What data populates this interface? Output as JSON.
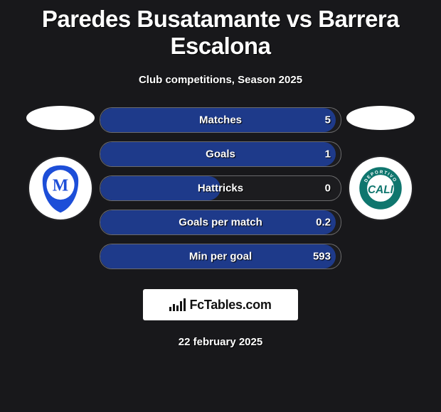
{
  "title": "Paredes Busatamante vs Barrera Escalona",
  "subtitle": "Club competitions, Season 2025",
  "date": "22 february 2025",
  "branding": "FcTables.com",
  "colors": {
    "bg": "#18181b",
    "bar_fill": "#1e3a8a",
    "bar_border": "rgba(255,255,255,0.35)",
    "text": "#ffffff",
    "crest_left_primary": "#1d4ed8",
    "crest_right_primary": "#0f766e"
  },
  "players": {
    "left": {
      "name": "Paredes Busatamante",
      "club_crest": "millonarios"
    },
    "right": {
      "name": "Barrera Escalona",
      "club_crest": "deportivo-cali"
    }
  },
  "stats": [
    {
      "label": "Matches",
      "value": "5",
      "fill_pct": 98
    },
    {
      "label": "Goals",
      "value": "1",
      "fill_pct": 98
    },
    {
      "label": "Hattricks",
      "value": "0",
      "fill_pct": 50
    },
    {
      "label": "Goals per match",
      "value": "0.2",
      "fill_pct": 98
    },
    {
      "label": "Min per goal",
      "value": "593",
      "fill_pct": 98
    }
  ]
}
